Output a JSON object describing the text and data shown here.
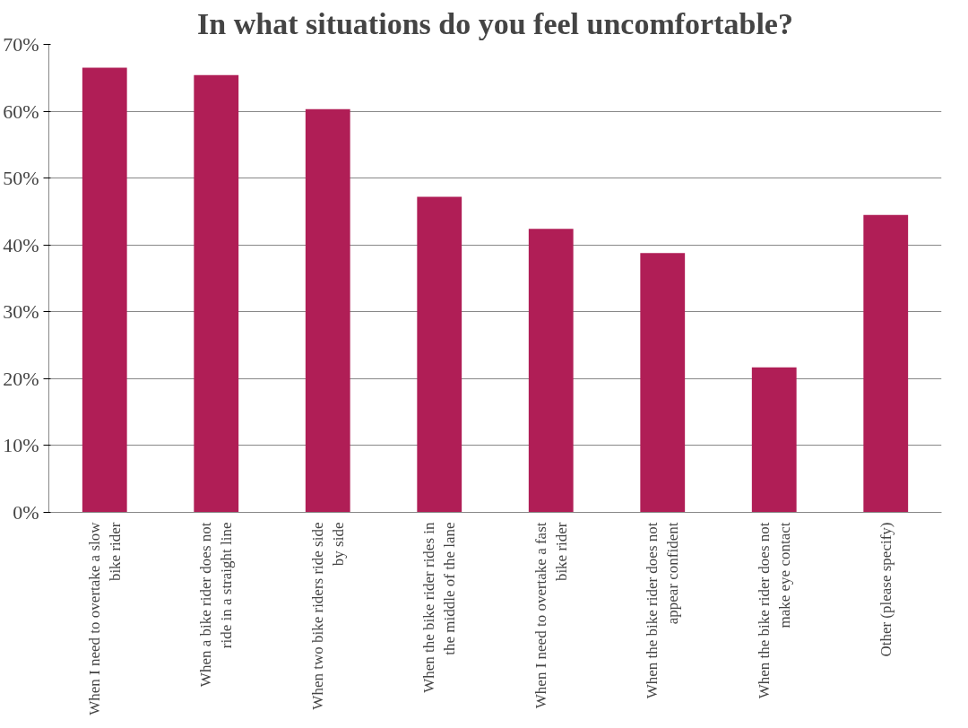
{
  "chart_data": {
    "type": "bar",
    "title": "In what situations do you feel uncomfortable?",
    "categories": [
      "When I need to overtake a slow bike rider",
      "When a bike rider does not ride in a straight line",
      "When two bike riders ride side by side",
      "When the bike rider rides in the middle of the lane",
      "When I need to overtake a fast bike rider",
      "When the bike rider does not appear confident",
      "When the bike rider does not make eye contact",
      "Other (please specify)"
    ],
    "values": [
      66.5,
      65.4,
      60.3,
      47.2,
      42.4,
      38.8,
      21.7,
      44.5
    ],
    "color": "#b01e56",
    "ylim": [
      0,
      70
    ],
    "yticks": [
      {
        "value": 0,
        "label": "0%"
      },
      {
        "value": 10,
        "label": "10%"
      },
      {
        "value": 20,
        "label": "20%"
      },
      {
        "value": 30,
        "label": "30%"
      },
      {
        "value": 40,
        "label": "40%"
      },
      {
        "value": 50,
        "label": "50%"
      },
      {
        "value": 60,
        "label": "60%"
      },
      {
        "value": 70,
        "label": "70%"
      }
    ],
    "grid": "y"
  }
}
